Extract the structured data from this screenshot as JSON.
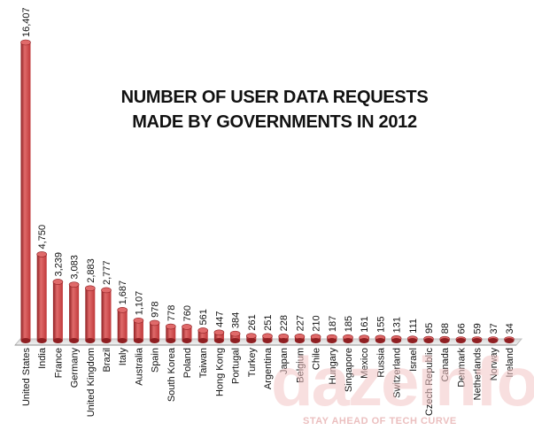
{
  "chart_data": {
    "type": "bar",
    "title_lines": [
      "NUMBER OF USER DATA REQUESTS",
      "MADE BY GOVERNMENTS IN 2012"
    ],
    "categories": [
      "United States",
      "India",
      "France",
      "Germany",
      "United Kingdom",
      "Brazil",
      "Italy",
      "Australia",
      "Spain",
      "South Korea",
      "Poland",
      "Taiwan",
      "Hong Kong",
      "Portugal",
      "Turkey",
      "Argentina",
      "Japan",
      "Belgium",
      "Chile",
      "Hungary",
      "Singapore",
      "Mexico",
      "Russia",
      "Switzerland",
      "Israel",
      "Czech Republic",
      "Canada",
      "Denmark",
      "Netherlands",
      "Norway",
      "Ireland"
    ],
    "values": [
      16407,
      4750,
      3239,
      3083,
      2883,
      2777,
      1687,
      1107,
      978,
      778,
      760,
      561,
      447,
      384,
      261,
      251,
      228,
      227,
      210,
      187,
      185,
      161,
      155,
      131,
      111,
      95,
      88,
      66,
      59,
      37,
      34
    ],
    "value_labels": [
      "16,407",
      "4,750",
      "3,239",
      "3,083",
      "2,883",
      "2,777",
      "1,687",
      "1,107",
      "978",
      "778",
      "760",
      "561",
      "447",
      "384",
      "261",
      "251",
      "228",
      "227",
      "210",
      "187",
      "185",
      "161",
      "155",
      "131",
      "111",
      "95",
      "88",
      "66",
      "59",
      "37",
      "34"
    ],
    "ylim": [
      0,
      16407
    ],
    "grid": false,
    "bar_color": "#c0393b",
    "bar_dark": "#8f1f22",
    "bar_light": "#e06a6a"
  },
  "watermark": {
    "logo": "dazeinfo",
    "tagline": "STAY AHEAD OF TECH CURVE"
  }
}
